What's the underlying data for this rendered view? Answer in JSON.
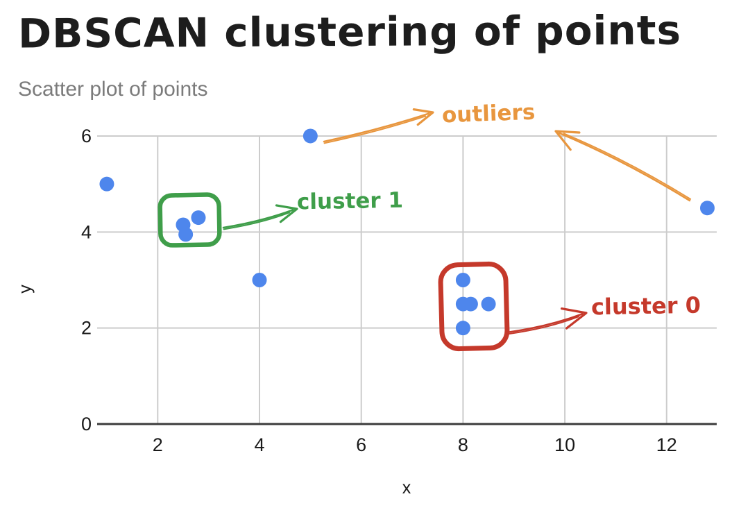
{
  "title": "DBSCAN clustering of points",
  "subtitle": "Scatter plot of points",
  "colors": {
    "title": "#1d1d1d",
    "subtitle": "#7b7b7b",
    "point": "#4e86ec",
    "grid": "#cccccc",
    "axis": "#3b3b3b",
    "tick_label": "#1a1a1a",
    "cluster0": "#c5392b",
    "cluster1": "#3f9e4a",
    "outliers": "#e8963e"
  },
  "annotations": {
    "outliers": {
      "label": "outliers",
      "color": "#e8963e"
    },
    "cluster1": {
      "label": "cluster 1",
      "color": "#3f9e4a"
    },
    "cluster0": {
      "label": "cluster 0",
      "color": "#c5392b"
    }
  },
  "chart_data": {
    "type": "scatter",
    "title": "DBSCAN clustering of points",
    "subtitle": "Scatter plot of points",
    "xlabel": "x",
    "ylabel": "y",
    "xlim": [
      0.8,
      13
    ],
    "ylim": [
      0,
      6
    ],
    "x_ticks": [
      2,
      4,
      6,
      8,
      10,
      12
    ],
    "y_ticks": [
      0,
      2,
      4,
      6
    ],
    "grid": true,
    "point_color": "#4e86ec",
    "points": [
      {
        "x": 1.0,
        "y": 5.0,
        "group": "outlier"
      },
      {
        "x": 2.5,
        "y": 4.15,
        "group": "cluster1"
      },
      {
        "x": 2.55,
        "y": 3.95,
        "group": "cluster1"
      },
      {
        "x": 2.8,
        "y": 4.3,
        "group": "cluster1"
      },
      {
        "x": 4.0,
        "y": 3.0,
        "group": "none"
      },
      {
        "x": 5.0,
        "y": 6.0,
        "group": "outlier"
      },
      {
        "x": 8.0,
        "y": 3.0,
        "group": "cluster0"
      },
      {
        "x": 8.0,
        "y": 2.5,
        "group": "cluster0"
      },
      {
        "x": 8.15,
        "y": 2.5,
        "group": "cluster0"
      },
      {
        "x": 8.5,
        "y": 2.5,
        "group": "cluster0"
      },
      {
        "x": 8.0,
        "y": 2.0,
        "group": "cluster0"
      },
      {
        "x": 12.8,
        "y": 4.5,
        "group": "outlier"
      }
    ]
  }
}
